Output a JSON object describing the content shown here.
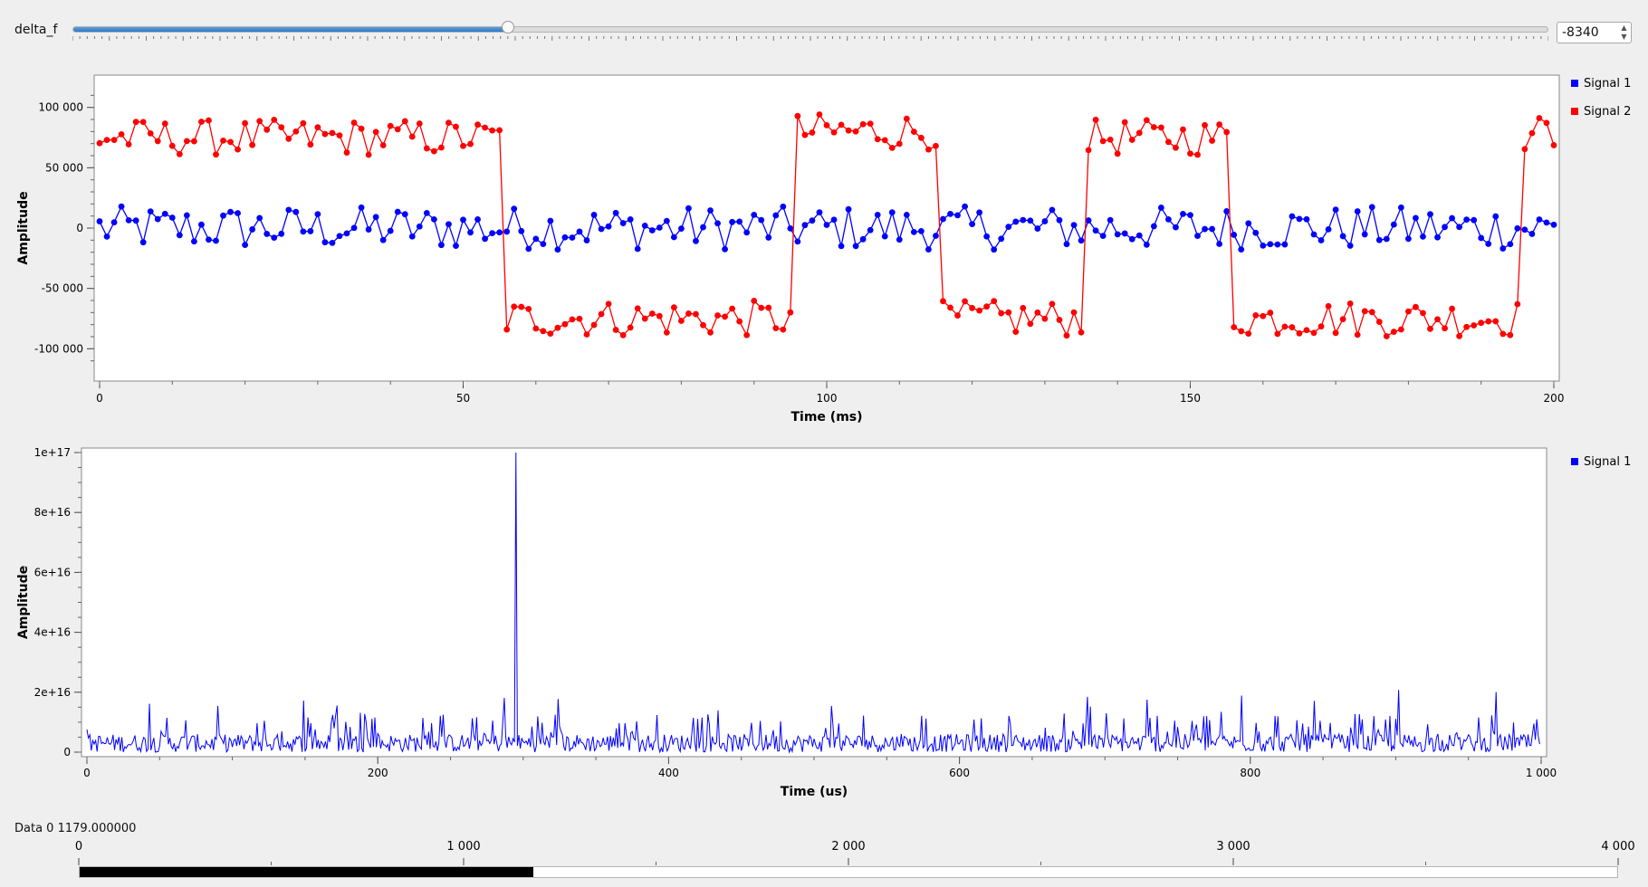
{
  "slider": {
    "label": "delta_f",
    "value_text": "-8340",
    "fraction": 0.295
  },
  "legend_colors": {
    "signal1": "#0000ff",
    "signal2": "#ff0000"
  },
  "plot1": {
    "ylabel": "Amplitude",
    "xlabel": "Time (ms)",
    "yticks": [
      "100 000",
      "50 000",
      "0",
      "-50 000",
      "-100 000"
    ],
    "xticks": [
      "0",
      "50",
      "100",
      "150",
      "200"
    ],
    "legend": [
      "Signal 1",
      "Signal 2"
    ]
  },
  "plot2": {
    "ylabel": "Amplitude",
    "xlabel": "Time (us)",
    "yticks": [
      "1e+17",
      "8e+16",
      "6e+16",
      "4e+16",
      "2e+16",
      "0"
    ],
    "xticks": [
      "0",
      "200",
      "400",
      "600",
      "800",
      "1 000"
    ],
    "legend": [
      "Signal 1"
    ]
  },
  "bottom": {
    "label": "Data 0  1179.000000",
    "scale": [
      "0",
      "1 000",
      "2 000",
      "3 000",
      "4 000"
    ],
    "progress": 0.295
  },
  "chart_data": [
    {
      "type": "scatter",
      "xlabel": "Time (ms)",
      "ylabel": "Amplitude",
      "xlim": [
        0,
        200
      ],
      "ylim": [
        -120000,
        120000
      ],
      "grid": false,
      "legend_position": "right",
      "series": [
        {
          "name": "Signal 1",
          "color": "#0000ff",
          "approx_level": 0,
          "noise_amplitude": 20000,
          "x_range": [
            0,
            200
          ],
          "points": 201
        },
        {
          "name": "Signal 2",
          "color": "#ff0000",
          "square_wave": true,
          "points": 201,
          "segments": [
            {
              "x": [
                0,
                55
              ],
              "level": 75000
            },
            {
              "x": [
                56,
                95
              ],
              "level": -75000
            },
            {
              "x": [
                96,
                115
              ],
              "level": 80000
            },
            {
              "x": [
                116,
                135
              ],
              "level": -75000
            },
            {
              "x": [
                136,
                155
              ],
              "level": 75000
            },
            {
              "x": [
                156,
                195
              ],
              "level": -75000
            },
            {
              "x": [
                196,
                200
              ],
              "level": 78000
            }
          ],
          "range_min": -107000,
          "range_max": 98000
        }
      ]
    },
    {
      "type": "line",
      "xlabel": "Time (us)",
      "ylabel": "Amplitude",
      "xlim": [
        0,
        1000
      ],
      "ylim": [
        0,
        1e+17
      ],
      "grid": false,
      "legend_position": "right",
      "series": [
        {
          "name": "Signal 1",
          "color": "#0000ff",
          "points": 1000,
          "peak": {
            "x": 295,
            "y": 1e+17
          },
          "noise_typical": 4000000000000000.0,
          "noise_max": 2.3e+16
        }
      ]
    }
  ]
}
